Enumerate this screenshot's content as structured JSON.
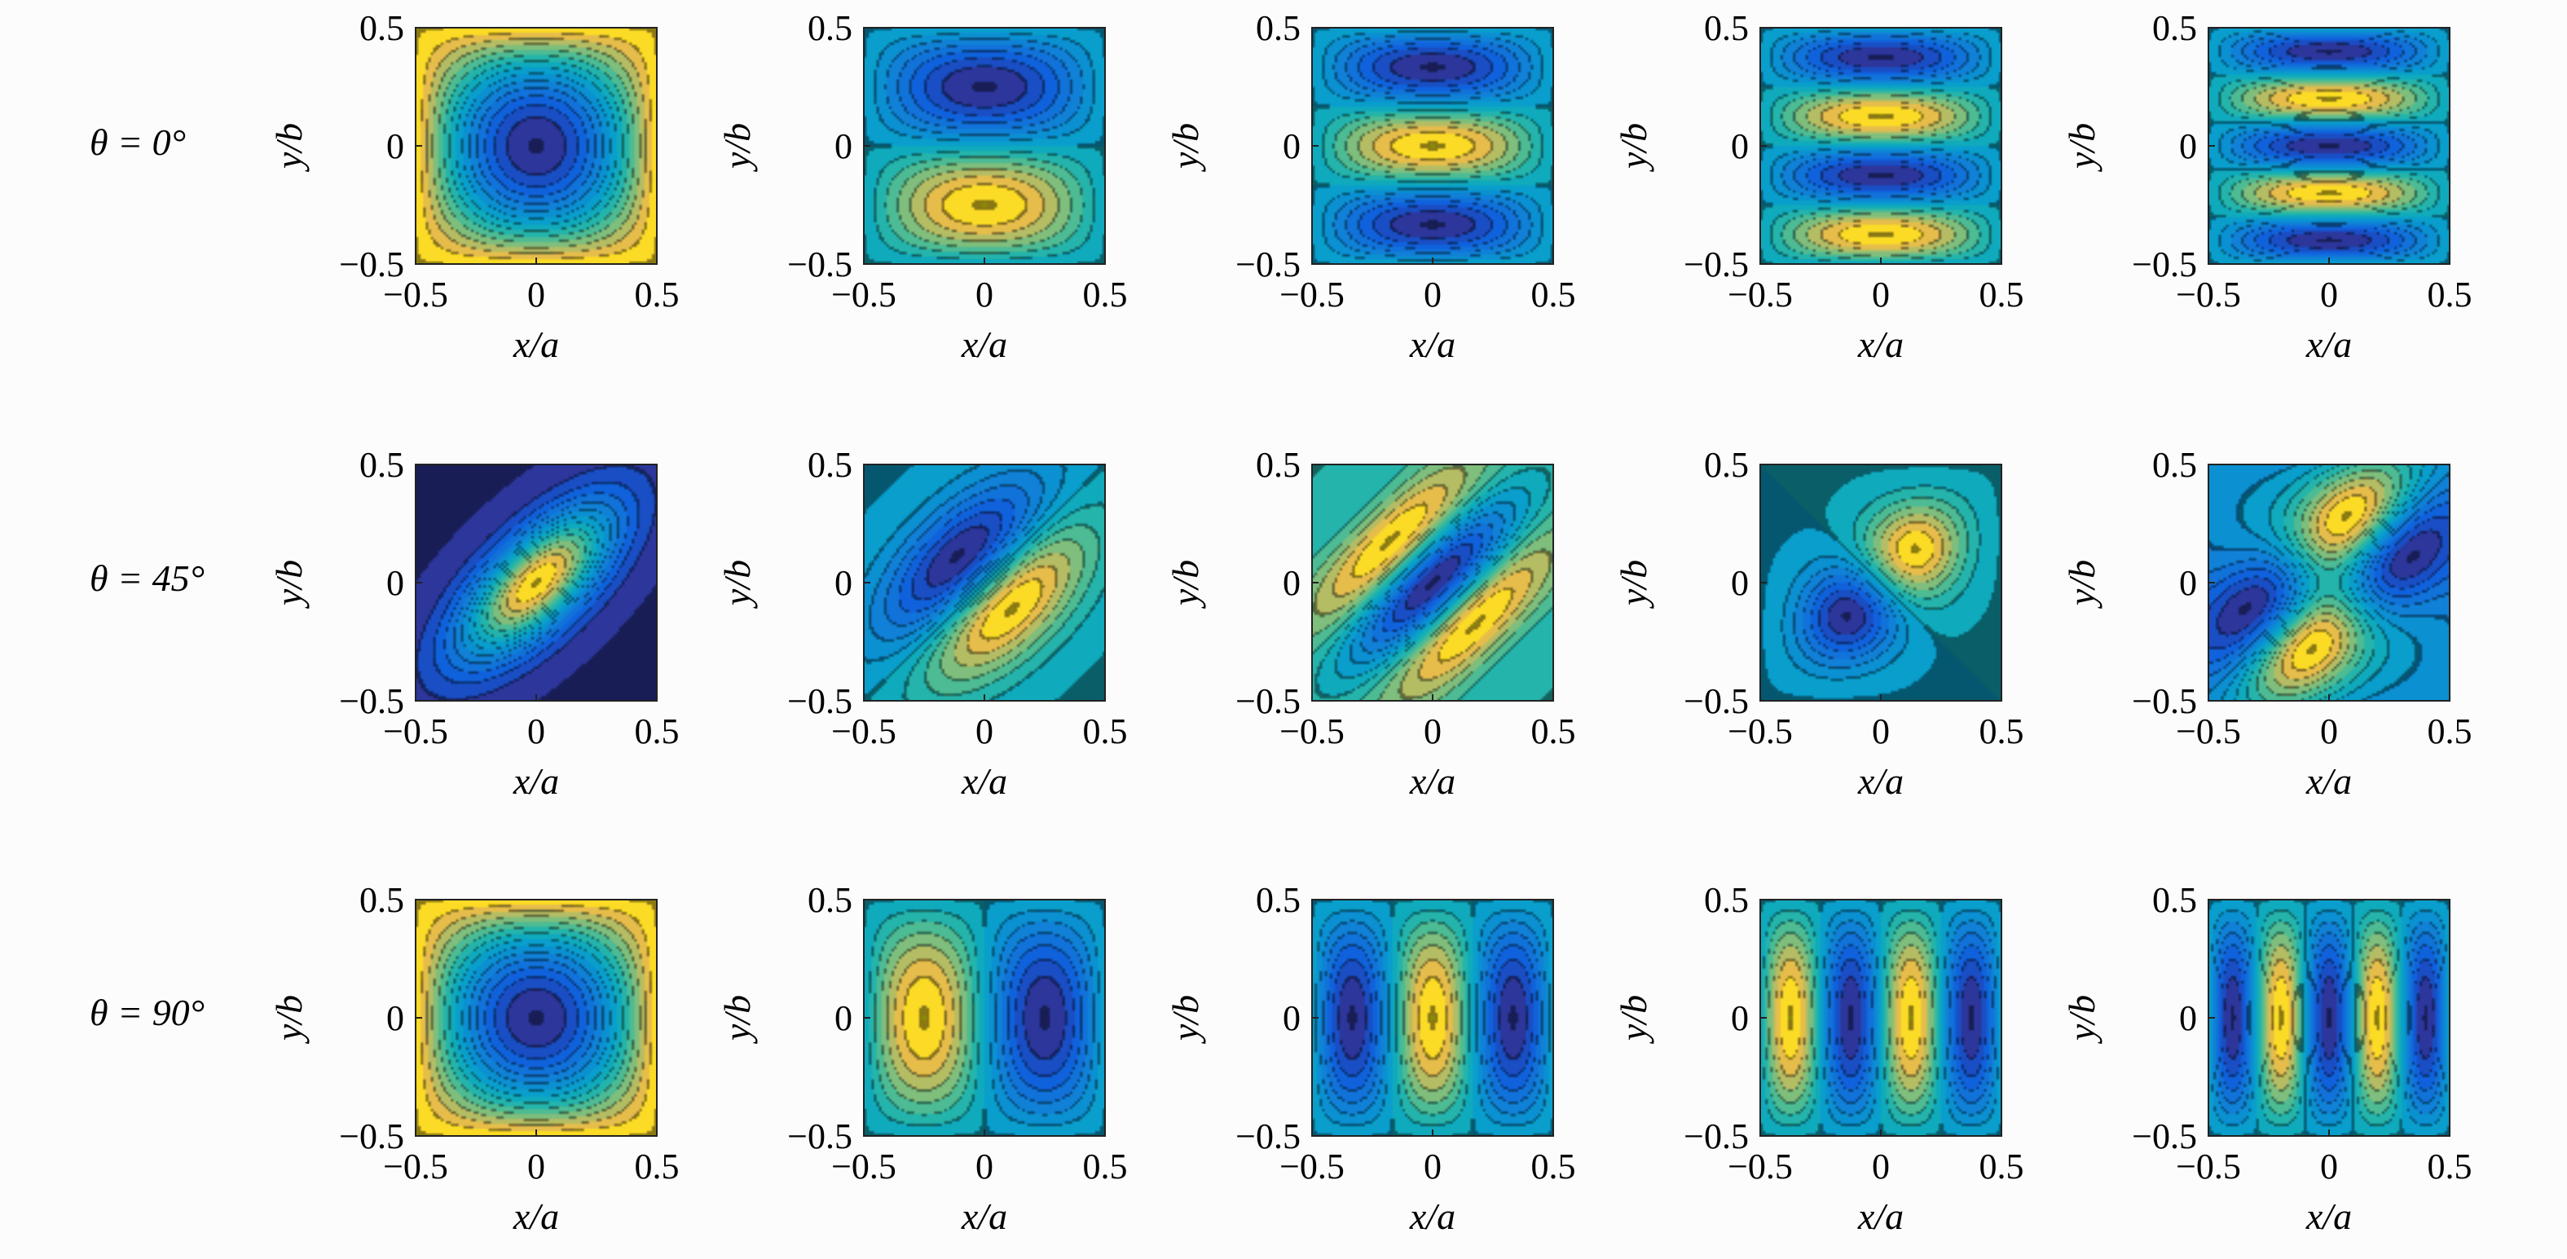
{
  "chart_data": {
    "type": "heatmap",
    "description_kind": "contour",
    "colormap": "parula",
    "rows": [
      {
        "angle_label": "θ = 0°",
        "theta_deg": 0
      },
      {
        "angle_label": "θ = 45°",
        "theta_deg": 45
      },
      {
        "angle_label": "θ = 90°",
        "theta_deg": 90
      }
    ],
    "axes": {
      "xlabel": "x/a",
      "ylabel": "y/b",
      "xlim": [
        -0.5,
        0.5
      ],
      "ylim": [
        -0.5,
        0.5
      ],
      "xticks": [
        "−0.5",
        "0",
        "0.5"
      ],
      "yticks": [
        "0.5",
        "0",
        "−0.5"
      ],
      "grid": false
    },
    "panels": [
      {
        "row": 0,
        "col": 0,
        "mode": [
          1,
          1
        ],
        "rotation_deg": 0
      },
      {
        "row": 0,
        "col": 1,
        "mode": [
          1,
          2
        ],
        "rotation_deg": 0
      },
      {
        "row": 0,
        "col": 2,
        "mode": [
          1,
          3
        ],
        "rotation_deg": 0
      },
      {
        "row": 0,
        "col": 3,
        "mode": [
          1,
          4
        ],
        "rotation_deg": 0
      },
      {
        "row": 0,
        "col": 4,
        "mode": [
          1,
          5
        ],
        "rotation_deg": 0
      },
      {
        "row": 1,
        "col": 0,
        "mode": [
          1,
          1
        ],
        "rotation_deg": 45
      },
      {
        "row": 1,
        "col": 1,
        "mode": [
          1,
          2
        ],
        "rotation_deg": 45
      },
      {
        "row": 1,
        "col": 2,
        "mode": [
          1,
          3
        ],
        "rotation_deg": 45
      },
      {
        "row": 1,
        "col": 3,
        "mode": [
          2,
          1
        ],
        "rotation_deg": 45
      },
      {
        "row": 1,
        "col": 4,
        "mode": [
          2,
          2
        ],
        "rotation_deg": 45
      },
      {
        "row": 2,
        "col": 0,
        "mode": [
          1,
          1
        ],
        "rotation_deg": 90
      },
      {
        "row": 2,
        "col": 1,
        "mode": [
          2,
          1
        ],
        "rotation_deg": 90
      },
      {
        "row": 2,
        "col": 2,
        "mode": [
          3,
          1
        ],
        "rotation_deg": 90
      },
      {
        "row": 2,
        "col": 3,
        "mode": [
          4,
          1
        ],
        "rotation_deg": 90
      },
      {
        "row": 2,
        "col": 4,
        "mode": [
          5,
          1
        ],
        "rotation_deg": 90
      }
    ]
  }
}
